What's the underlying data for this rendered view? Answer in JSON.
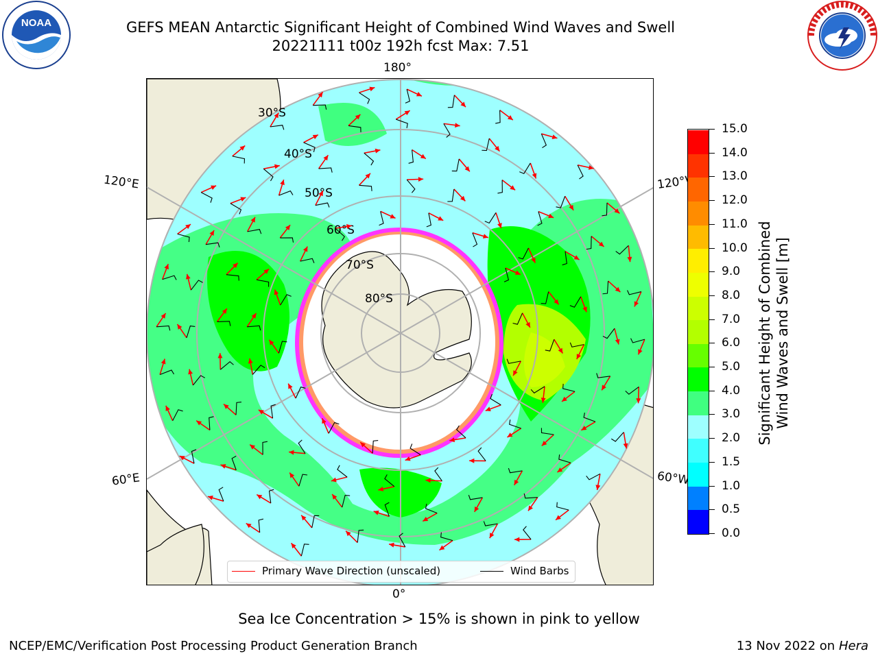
{
  "title": {
    "line1": "GEFS MEAN Antarctic Significant Height of Combined Wind Waves and Swell",
    "line2": "20221111 t00z 192h fcst   Max: 7.51"
  },
  "logos": {
    "left": {
      "name": "noaa-logo",
      "text": "NOAA",
      "ring_text": "NATIONAL OCEANIC AND ATMOSPHERIC ADMINISTRATION · U.S. DEPARTMENT OF COMMERCE"
    },
    "right": {
      "name": "nws-logo",
      "ring_text": "NATIONAL WEATHER SERVICE"
    }
  },
  "map": {
    "projection": "south polar stereographic",
    "longitude_labels": {
      "top": "180°",
      "bottom": "0°",
      "left_upper": "120°E",
      "left_lower": "60°E",
      "right_upper": "120°W",
      "right_lower": "60°W"
    },
    "latitude_labels": [
      "30°S",
      "40°S",
      "50°S",
      "60°S",
      "70°S",
      "80°S"
    ],
    "colors": {
      "land": "#efedda",
      "ice_free_high": "#ffffff",
      "ice_edge": [
        "#ff33ff",
        "#ff9966",
        "#ffcc33"
      ],
      "grid": "#b0b0b0",
      "wave_arrow": "#ff0000",
      "wind_barb": "#000000"
    },
    "max_value": 7.51
  },
  "legend": {
    "primary": "Primary Wave Direction (unscaled)",
    "wind": "Wind Barbs"
  },
  "colorbar": {
    "title_line1": "Significant Height of Combined",
    "title_line2": "Wind Waves and Swell [m]",
    "ticks": [
      "0.0",
      "0.5",
      "1.0",
      "1.5",
      "2.0",
      "3.0",
      "4.0",
      "5.0",
      "6.0",
      "7.0",
      "8.0",
      "9.0",
      "10.0",
      "11.0",
      "12.0",
      "13.0",
      "14.0",
      "15.0"
    ],
    "colors": [
      "#0000ff",
      "#0080ff",
      "#00ffff",
      "#40ffff",
      "#9effff",
      "#40ff80",
      "#00ff00",
      "#66ff00",
      "#b3ff00",
      "#ccff00",
      "#eeff00",
      "#ffee00",
      "#ffbb00",
      "#ff8c00",
      "#ff6600",
      "#ff3300",
      "#ff0000"
    ]
  },
  "subtitle": "Sea Ice Concentration > 15% is shown in pink to yellow",
  "footer": {
    "left": "NCEP/EMC/Verification Post Processing Product Generation Branch",
    "right_prefix": "13 Nov 2022 on",
    "right_machine": "Hera"
  }
}
